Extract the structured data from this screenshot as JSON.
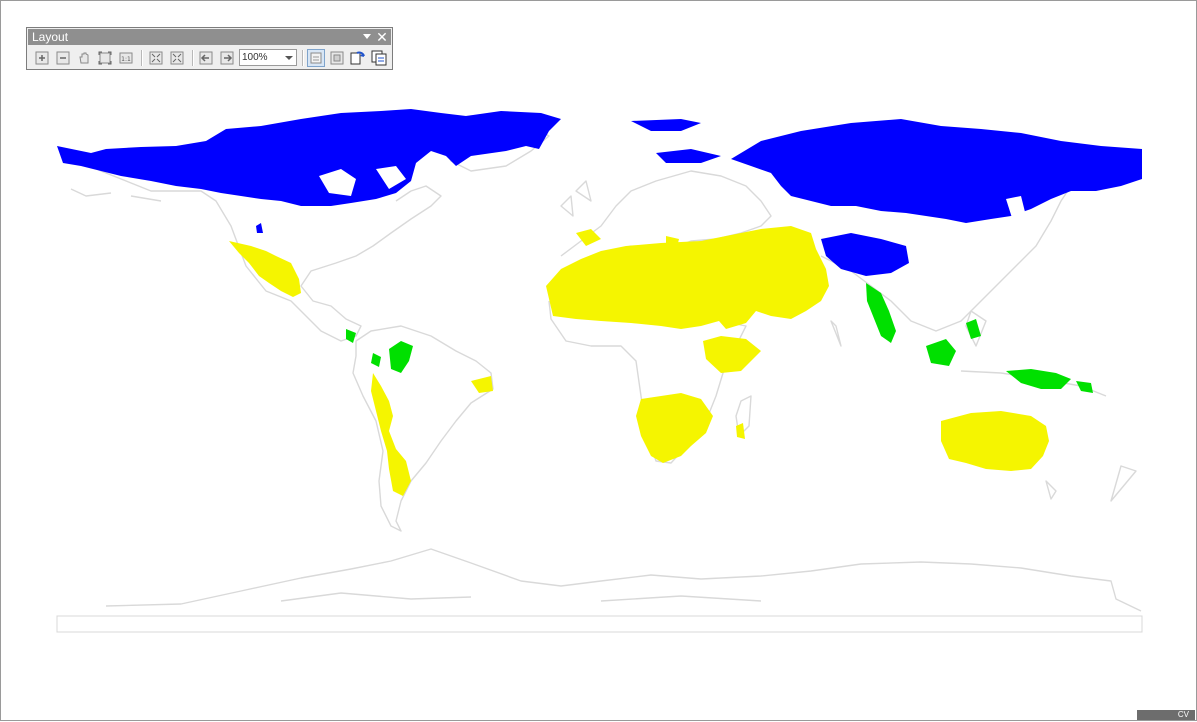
{
  "toolbar": {
    "title": "Layout",
    "zoom_value": "100%",
    "buttons": [
      {
        "name": "zoom-in-icon"
      },
      {
        "name": "zoom-out-icon"
      },
      {
        "name": "pan-icon"
      },
      {
        "name": "zoom-whole-page-icon"
      },
      {
        "name": "zoom-100-percent-icon"
      },
      {
        "name": "fixed-zoom-in-icon"
      },
      {
        "name": "fixed-zoom-out-icon"
      },
      {
        "name": "go-back-extent-icon"
      },
      {
        "name": "go-forward-extent-icon"
      },
      {
        "name": "toggle-draft-mode-icon"
      },
      {
        "name": "focus-data-frame-icon"
      },
      {
        "name": "change-layout-icon"
      },
      {
        "name": "data-driven-pages-icon"
      }
    ]
  },
  "map": {
    "colors": {
      "background": "#ffffff",
      "outline": "#d8d8d8",
      "cold_region": "#0000ff",
      "arid_region": "#f5f500",
      "tropical_region": "#00e000"
    }
  },
  "status": {
    "corner_text": "CV"
  }
}
